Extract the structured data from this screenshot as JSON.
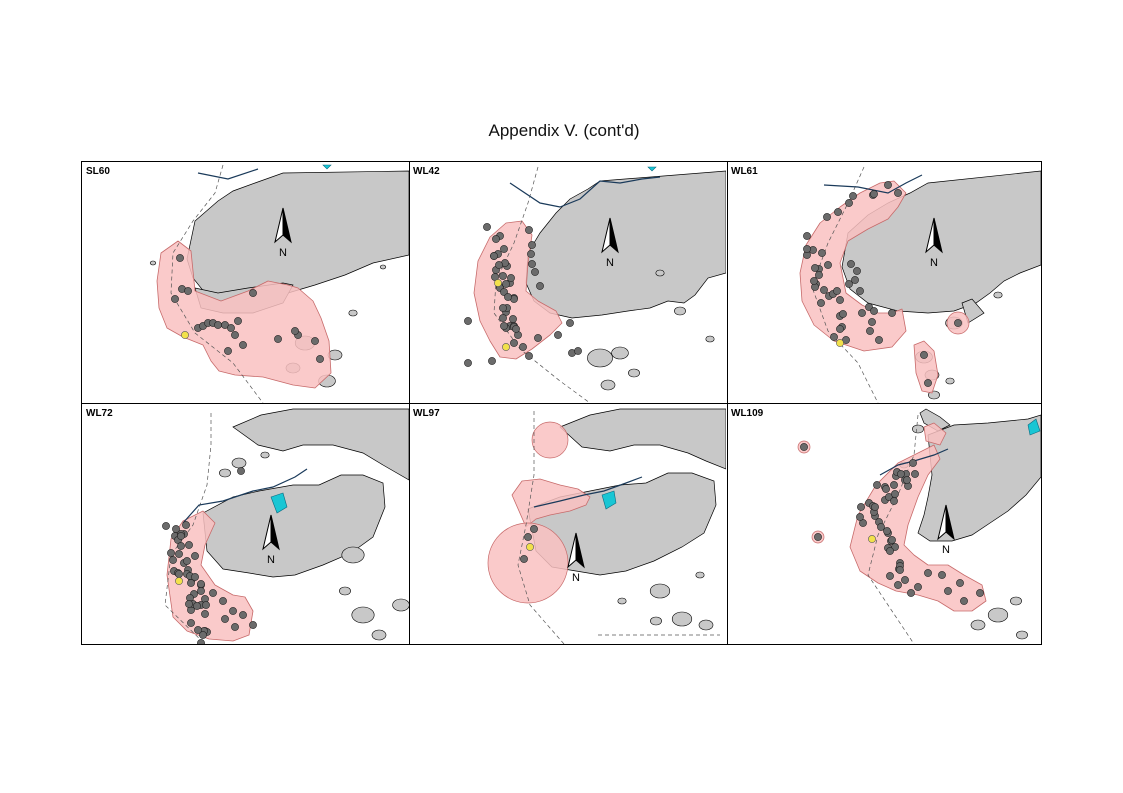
{
  "title": "Appendix V.  (cont'd)",
  "north_label": "N",
  "colors": {
    "land": "#c8c8c8",
    "range": "#f9c1c1",
    "sighting": "#6b6b6b",
    "highlight": "#f2e14b",
    "line": "#000000",
    "accent": "#19c6d4"
  },
  "panels": [
    {
      "id": "SL60",
      "label": "SL60"
    },
    {
      "id": "WL42",
      "label": "WL42"
    },
    {
      "id": "WL61",
      "label": "WL61"
    },
    {
      "id": "WL72",
      "label": "WL72"
    },
    {
      "id": "WL97",
      "label": "WL97"
    },
    {
      "id": "WL109",
      "label": "WL109"
    }
  ]
}
